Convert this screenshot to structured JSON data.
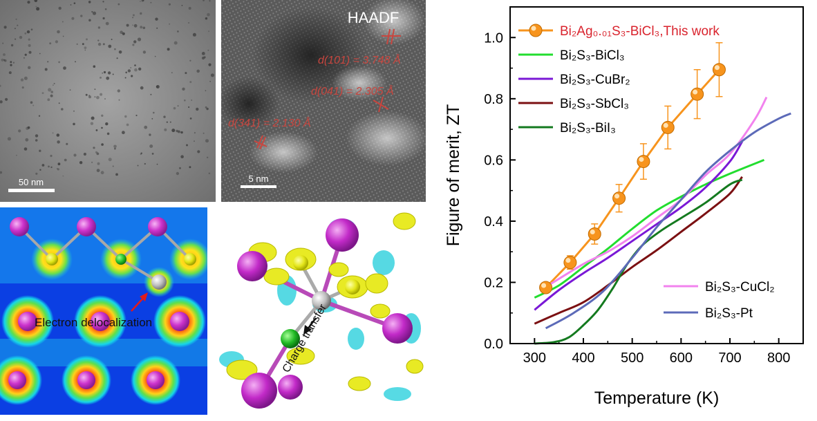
{
  "figure": {
    "tem": {
      "scale_label": "50 nm"
    },
    "haadf": {
      "title": "HAADF",
      "scale_label": "5 nm",
      "d101": "d(101) = 3.748 Å",
      "d041": "d(041) = 2.305 Å",
      "d341": "d(341) = 2.130 Å"
    },
    "density": {
      "annotation": "Electron delocalization"
    },
    "charge": {
      "annotation": "Charge transfer"
    }
  },
  "colors": {
    "this_work": "#f7941d",
    "this_work_label": "#d9232d",
    "bicl3": "#22dd2f",
    "cubr2": "#7a18d6",
    "sbcl3": "#7b1012",
    "bii3": "#147a1f",
    "cucl2": "#f283ee",
    "pt": "#5c6ab8"
  },
  "chart_data": {
    "type": "line",
    "xlabel": "Temperature (K)",
    "ylabel": "Figure of merit, ZT",
    "xlim": [
      250,
      850
    ],
    "ylim": [
      0,
      1.1
    ],
    "xticks": [
      "300",
      "400",
      "500",
      "600",
      "700",
      "800"
    ],
    "yticks": [
      "0.0",
      "0.2",
      "0.4",
      "0.6",
      "0.8",
      "1.0"
    ],
    "series": [
      {
        "key": "this_work",
        "name": "Bi2Ag0.01S3-BiCl3,This work",
        "x": [
          323,
          373,
          423,
          473,
          523,
          573,
          633,
          678
        ],
        "y": [
          0.183,
          0.265,
          0.358,
          0.475,
          0.595,
          0.706,
          0.815,
          0.895
        ],
        "err": [
          0.015,
          0.022,
          0.033,
          0.045,
          0.058,
          0.07,
          0.08,
          0.088
        ]
      },
      {
        "key": "bicl3",
        "name": "Bi2S3-BiCl3",
        "x": [
          300,
          350,
          400,
          450,
          500,
          550,
          600,
          650,
          700,
          770
        ],
        "y": [
          0.15,
          0.19,
          0.25,
          0.31,
          0.375,
          0.435,
          0.48,
          0.52,
          0.555,
          0.6
        ]
      },
      {
        "key": "cubr2",
        "name": "Bi2S3-CuBr2",
        "x": [
          300,
          350,
          400,
          450,
          500,
          550,
          600,
          650,
          700,
          725
        ],
        "y": [
          0.11,
          0.175,
          0.23,
          0.28,
          0.335,
          0.39,
          0.445,
          0.51,
          0.595,
          0.66
        ]
      },
      {
        "key": "sbcl3",
        "name": "Bi2S3-SbCl3",
        "x": [
          300,
          350,
          400,
          450,
          500,
          550,
          600,
          650,
          700,
          725
        ],
        "y": [
          0.065,
          0.1,
          0.135,
          0.19,
          0.25,
          0.305,
          0.365,
          0.425,
          0.49,
          0.545
        ]
      },
      {
        "key": "bii3",
        "name": "Bi2S3-BiI3",
        "x": [
          300,
          340,
          370,
          400,
          430,
          460,
          490,
          520,
          560,
          600,
          650,
          700,
          725
        ],
        "y": [
          0.0,
          0.005,
          0.02,
          0.06,
          0.11,
          0.18,
          0.26,
          0.32,
          0.37,
          0.41,
          0.46,
          0.52,
          0.535
        ]
      },
      {
        "key": "cucl2",
        "name": "Bi2S3-CuCl2",
        "x": [
          323,
          400,
          450,
          500,
          550,
          600,
          650,
          700,
          750,
          775
        ],
        "y": [
          0.185,
          0.26,
          0.3,
          0.35,
          0.41,
          0.47,
          0.55,
          0.62,
          0.73,
          0.805
        ]
      },
      {
        "key": "pt",
        "name": "Bi2S3-Pt",
        "x": [
          323,
          380,
          440,
          500,
          550,
          600,
          650,
          700,
          750,
          800,
          825
        ],
        "y": [
          0.05,
          0.1,
          0.17,
          0.28,
          0.38,
          0.47,
          0.56,
          0.63,
          0.69,
          0.735,
          0.752
        ]
      }
    ],
    "legend_top": [
      {
        "key": "this_work",
        "label": "Bi₂Ag₀.₀₁S₃-BiCl₃,This work"
      },
      {
        "key": "bicl3",
        "label": "Bi₂S₃-BiCl₃"
      },
      {
        "key": "cubr2",
        "label": "Bi₂S₃-CuBr₂"
      },
      {
        "key": "sbcl3",
        "label": "Bi₂S₃-SbCl₃"
      },
      {
        "key": "bii3",
        "label": "Bi₂S₃-BiI₃"
      }
    ],
    "legend_bottom": [
      {
        "key": "cucl2",
        "label": "Bi₂S₃-CuCl₂"
      },
      {
        "key": "pt",
        "label": "Bi₂S₃-Pt"
      }
    ]
  }
}
